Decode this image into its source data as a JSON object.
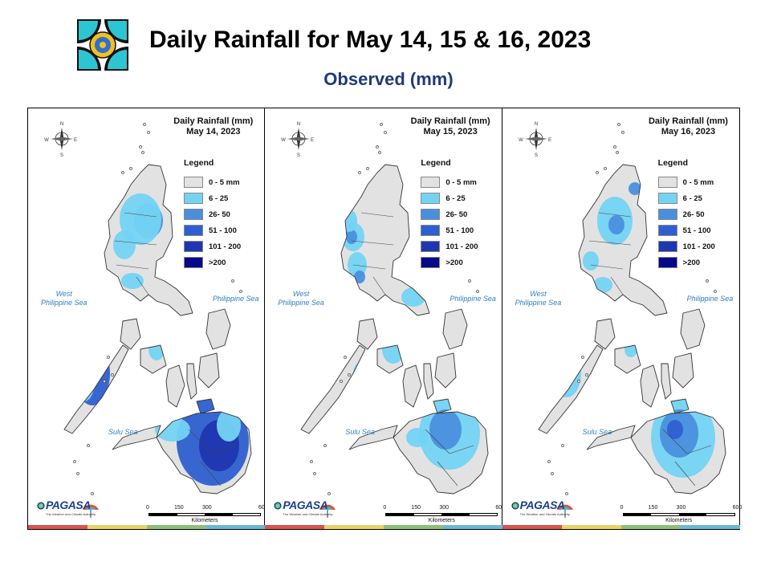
{
  "header": {
    "title": "Daily Rainfall for May 14, 15 & 16, 2023",
    "subtitle": "Observed (mm)"
  },
  "panels": [
    {
      "title_line1": "Daily Rainfall (mm)",
      "title_line2": "May 14, 2023"
    },
    {
      "title_line1": "Daily Rainfall (mm)",
      "title_line2": "May 15, 2023"
    },
    {
      "title_line1": "Daily Rainfall (mm)",
      "title_line2": "May 16, 2023"
    }
  ],
  "legend": {
    "title": "Legend",
    "items": [
      {
        "label": "0 - 5 mm",
        "color": "#e2e2e2"
      },
      {
        "label": "6 - 25",
        "color": "#74d3f3"
      },
      {
        "label": "26- 50",
        "color": "#4a8fde"
      },
      {
        "label": "51 - 100",
        "color": "#2e5fd0"
      },
      {
        "label": "101 - 200",
        "color": "#1f36b0"
      },
      {
        "label": ">200",
        "color": "#08088a"
      }
    ]
  },
  "map_labels": {
    "west_sea_line1": "West",
    "west_sea_line2": "Philippine Sea",
    "philippine_sea": "Philippine Sea",
    "sulu_sea": "Sulu Sea"
  },
  "compass": {
    "n": "N",
    "s": "S",
    "e": "E",
    "w": "W"
  },
  "scale": {
    "ticks": [
      "0",
      "150",
      "300",
      "600"
    ],
    "unit": "Kilometers"
  },
  "agency": {
    "name": "PAGASA",
    "tagline": "The Weather and Climate Authority"
  },
  "stripe_colors": [
    "#d9534f",
    "#e8d36a",
    "#8fbf7a",
    "#6cb7d6"
  ]
}
